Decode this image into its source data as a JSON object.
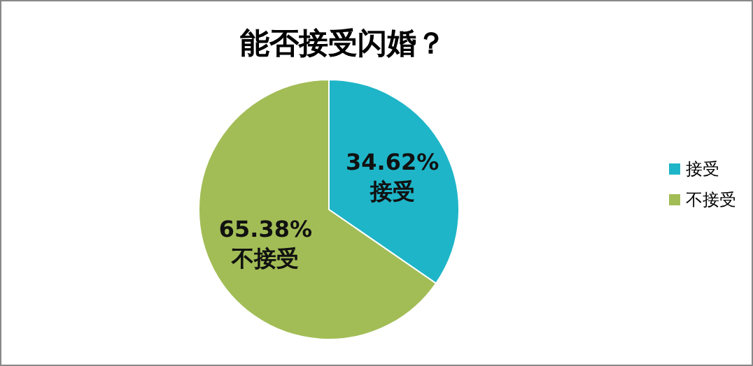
{
  "chart_data": {
    "type": "pie",
    "title": "能否接受闪婚？",
    "categories": [
      "接受",
      "不接受"
    ],
    "values": [
      34.62,
      65.38
    ],
    "value_labels": [
      "34.62%",
      "65.38%"
    ],
    "colors": [
      "#1fb5c8",
      "#a2bd56"
    ],
    "legend": "right"
  }
}
